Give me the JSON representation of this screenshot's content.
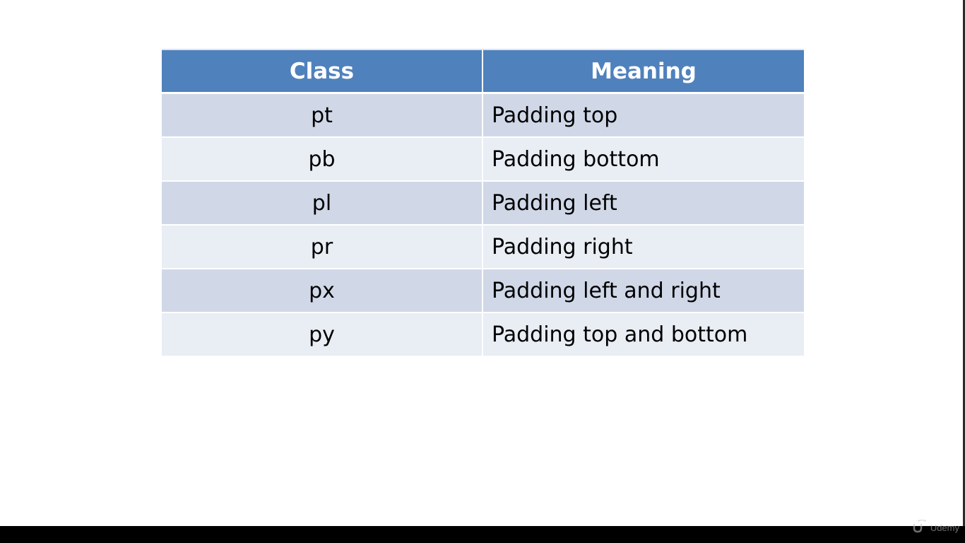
{
  "table": {
    "headers": [
      "Class",
      "Meaning"
    ],
    "rows": [
      {
        "class": "pt",
        "meaning": "Padding top"
      },
      {
        "class": "pb",
        "meaning": "Padding bottom"
      },
      {
        "class": "pl",
        "meaning": "Padding left"
      },
      {
        "class": "pr",
        "meaning": "Padding right"
      },
      {
        "class": "px",
        "meaning": "Padding left and right"
      },
      {
        "class": "py",
        "meaning": "Padding top and bottom"
      }
    ]
  },
  "watermark": {
    "text": "Udemy",
    "icon": "udemy-logo-icon"
  },
  "colors": {
    "header_bg": "#4f81bd",
    "row_odd": "#d0d8e8",
    "row_even": "#e9edf4",
    "header_text": "#ffffff"
  }
}
